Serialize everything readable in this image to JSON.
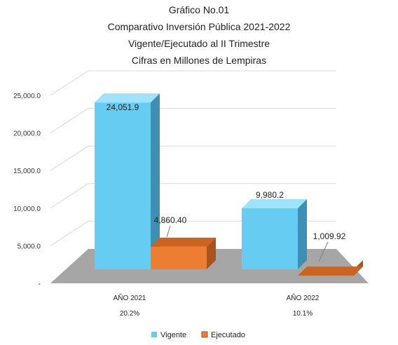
{
  "chart_data": {
    "type": "bar",
    "title_lines": [
      "Gráfico No.01",
      "Comparativo Inversión Pública 2021-2022",
      "Vigente/Ejecutado al II Trimestre",
      "Cifras en Millones de Lempiras"
    ],
    "categories": [
      {
        "label": "AÑO 2021",
        "sublabel": "20.2%"
      },
      {
        "label": "AÑO 2022",
        "sublabel": "10.1%"
      }
    ],
    "series": [
      {
        "name": "Vigente",
        "values": [
          24051.9,
          9980.2
        ],
        "labels": [
          "24,051.9",
          "9,980.2"
        ],
        "color": "#66ccf2",
        "side_color": "#3d8fb3",
        "top_color": "#9fe3fb"
      },
      {
        "name": "Ejecutado",
        "values": [
          4860.4,
          1009.92
        ],
        "labels": [
          "4,860.40",
          "1,009.92"
        ],
        "color": "#ed7d31",
        "side_color": "#a8541c",
        "top_color": "#c96422"
      }
    ],
    "y_ticks": [
      {
        "value": 0,
        "label": "-"
      },
      {
        "value": 5000,
        "label": "5,000.0"
      },
      {
        "value": 10000,
        "label": "10,000.0"
      },
      {
        "value": 15000,
        "label": "15,000.0"
      },
      {
        "value": 20000,
        "label": "20,000.0"
      },
      {
        "value": 25000,
        "label": "25,000.0"
      }
    ],
    "ylim": [
      0,
      25000
    ],
    "grid": true,
    "legend_position": "bottom"
  }
}
